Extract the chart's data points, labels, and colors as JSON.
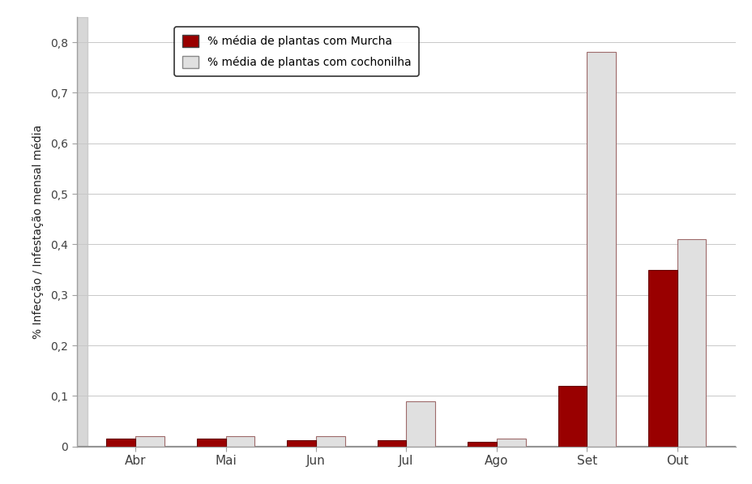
{
  "categories": [
    "Abr",
    "Mai",
    "Jun",
    "Jul",
    "Ago",
    "Set",
    "Out"
  ],
  "murcha": [
    0.015,
    0.015,
    0.013,
    0.012,
    0.01,
    0.12,
    0.35
  ],
  "cochonilha": [
    0.02,
    0.02,
    0.02,
    0.09,
    0.015,
    0.78,
    0.41
  ],
  "murcha_color": "#990000",
  "cochonilha_facecolor": "#E0E0E0",
  "cochonilha_edgecolor": "#9E6B6B",
  "murcha_edgecolor": "#660000",
  "ylabel": "% Infecção / Infestação mensal média",
  "legend_murcha": "% média de plantas com Murcha",
  "legend_cochonilha": "% média de plantas com cochonilha",
  "ylim": [
    0,
    0.85
  ],
  "yticks": [
    0,
    0.1,
    0.2,
    0.3,
    0.4,
    0.5,
    0.6,
    0.7,
    0.8
  ],
  "ytick_labels": [
    "0",
    "0,1",
    "0,2",
    "0,3",
    "0,4",
    "0,5",
    "0,6",
    "0,7",
    "0,8"
  ],
  "plot_bg_color": "#FFFFFF",
  "fig_bg_color": "#FFFFFF",
  "grid_color": "#C8C8C8",
  "bar_width": 0.32,
  "spine_color": "#A0A0A0",
  "tick_color": "#404040"
}
